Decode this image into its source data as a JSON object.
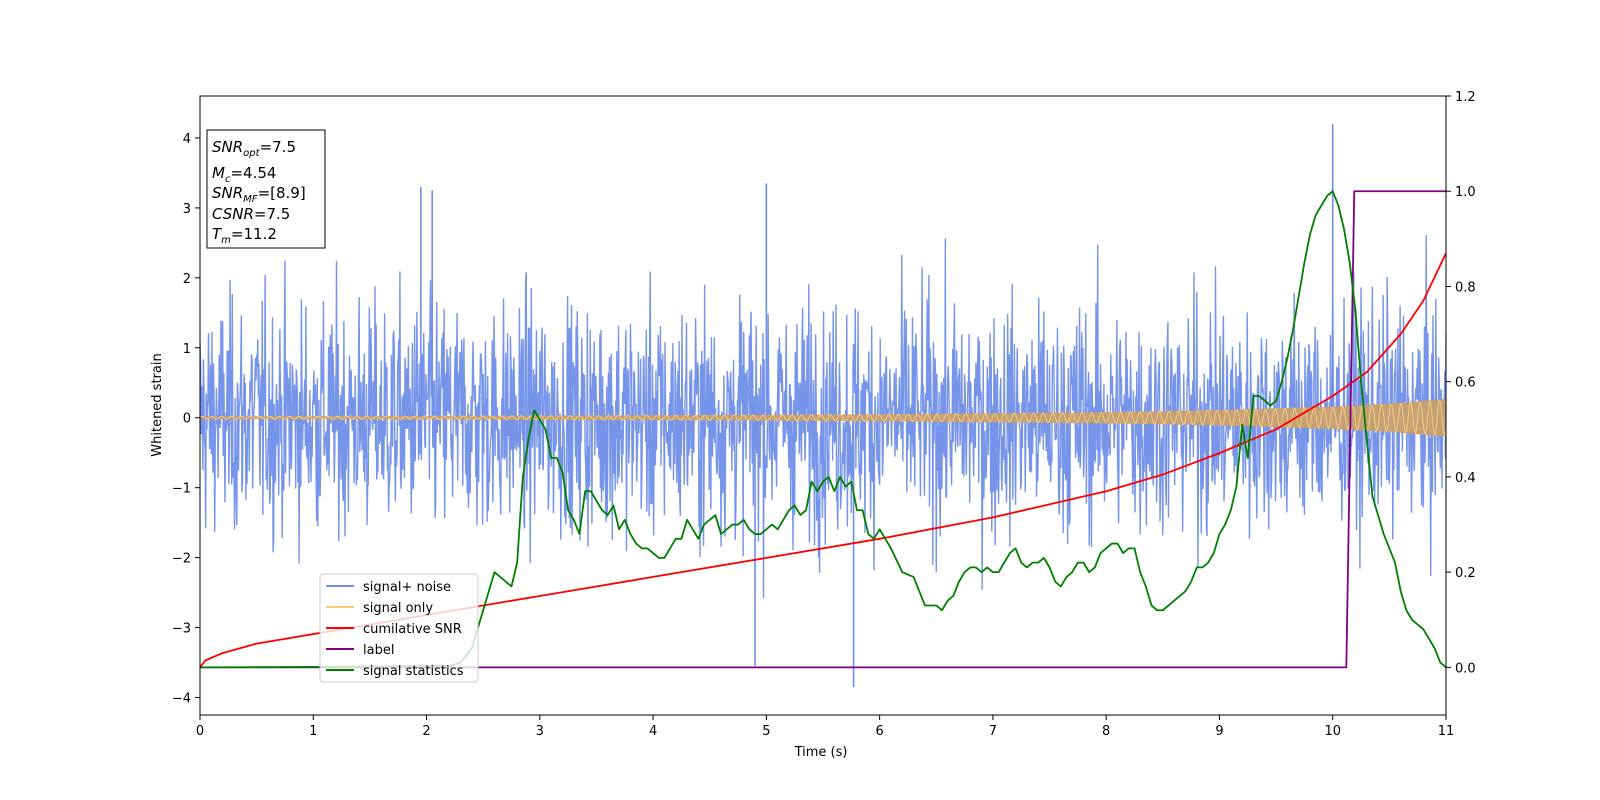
{
  "chart_data": {
    "type": "line",
    "title": "",
    "xlabel": "Time (s)",
    "ylabel": "Whitened strain",
    "y2label": "",
    "xlim": [
      0,
      11
    ],
    "ylim": [
      -4.25,
      4.6
    ],
    "y2lim": [
      -0.1,
      1.2
    ],
    "x_ticks": [
      0,
      1,
      2,
      3,
      4,
      5,
      6,
      7,
      8,
      9,
      10,
      11
    ],
    "y_ticks": [
      -4,
      -3,
      -2,
      -1,
      0,
      1,
      2,
      3,
      4
    ],
    "y_tick_labels": [
      "−4",
      "−3",
      "−2",
      "−1",
      "0",
      "1",
      "2",
      "3",
      "4"
    ],
    "y2_ticks": [
      0.0,
      0.2,
      0.4,
      0.6,
      0.8,
      1.0,
      1.2
    ],
    "y2_tick_labels": [
      "0.0",
      "0.2",
      "0.4",
      "0.6",
      "0.8",
      "1.0",
      "1.2"
    ],
    "grid": false,
    "legend_position": "lower-left",
    "annotation": {
      "snr_opt": {
        "sym": "SNR",
        "sub": "opt",
        "val": "=7.5"
      },
      "mc": {
        "sym": "M",
        "sub": "c",
        "val": "=4.54"
      },
      "snr_mf": {
        "sym": "SNR",
        "sub": "MF",
        "val": "=[8.9]"
      },
      "csnr": {
        "sym": "CSNR",
        "sub": "",
        "val": "=7.5"
      },
      "tm": {
        "sym": "T",
        "sub": "m",
        "val": "=11.2"
      }
    },
    "series": [
      {
        "name": "signal+ noise",
        "color": "#6f8ee8",
        "axis": "left",
        "description_values": "noise band roughly -2.5 to 2.5 with spikes to 4.2",
        "peak_spikes": [
          [
            4.9,
            -3.55
          ],
          [
            5.0,
            3.35
          ],
          [
            5.77,
            -3.85
          ],
          [
            10.0,
            4.2
          ],
          [
            1.95,
            3.3
          ],
          [
            2.05,
            3.25
          ]
        ]
      },
      {
        "name": "signal only",
        "color": "#f5c87a",
        "axis": "left",
        "envelope": {
          "x": [
            0,
            2,
            4,
            6,
            8,
            9,
            10,
            10.5,
            11
          ],
          "amp": [
            0.02,
            0.025,
            0.035,
            0.05,
            0.08,
            0.11,
            0.16,
            0.2,
            0.27
          ]
        }
      },
      {
        "name": "cumilative SNR",
        "color": "#ff0000",
        "axis": "right",
        "x": [
          0,
          0.05,
          0.2,
          0.5,
          1,
          2,
          3,
          4,
          5,
          6,
          7,
          8,
          8.5,
          9,
          9.5,
          10,
          10.3,
          10.6,
          10.8,
          11
        ],
        "y": [
          0.0,
          0.015,
          0.03,
          0.05,
          0.07,
          0.11,
          0.15,
          0.19,
          0.23,
          0.27,
          0.315,
          0.37,
          0.405,
          0.45,
          0.5,
          0.57,
          0.62,
          0.7,
          0.77,
          0.87
        ]
      },
      {
        "name": "label",
        "color": "#800080",
        "axis": "right",
        "x": [
          0,
          10.12,
          10.19,
          11
        ],
        "y": [
          0,
          0,
          1,
          1
        ]
      },
      {
        "name": "signal statistics",
        "color": "#007f00",
        "axis": "right",
        "x": [
          0,
          1,
          2.2,
          2.3,
          2.4,
          2.5,
          2.6,
          2.7,
          2.75,
          2.8,
          2.85,
          2.9,
          2.95,
          3.0,
          3.05,
          3.1,
          3.15,
          3.2,
          3.25,
          3.3,
          3.35,
          3.4,
          3.45,
          3.5,
          3.55,
          3.6,
          3.65,
          3.7,
          3.75,
          3.8,
          3.85,
          3.9,
          3.95,
          4.0,
          4.05,
          4.1,
          4.15,
          4.2,
          4.25,
          4.3,
          4.35,
          4.4,
          4.45,
          4.5,
          4.55,
          4.6,
          4.65,
          4.7,
          4.75,
          4.8,
          4.85,
          4.9,
          4.95,
          5.0,
          5.05,
          5.1,
          5.15,
          5.2,
          5.25,
          5.3,
          5.35,
          5.4,
          5.45,
          5.5,
          5.55,
          5.6,
          5.65,
          5.7,
          5.75,
          5.8,
          5.85,
          5.9,
          5.95,
          6.0,
          6.1,
          6.2,
          6.3,
          6.4,
          6.5,
          6.55,
          6.6,
          6.65,
          6.7,
          6.75,
          6.8,
          6.85,
          6.9,
          6.95,
          7.0,
          7.05,
          7.1,
          7.15,
          7.2,
          7.25,
          7.3,
          7.35,
          7.4,
          7.45,
          7.5,
          7.55,
          7.6,
          7.65,
          7.7,
          7.75,
          7.8,
          7.85,
          7.9,
          7.95,
          8.0,
          8.05,
          8.1,
          8.15,
          8.2,
          8.25,
          8.3,
          8.35,
          8.4,
          8.45,
          8.5,
          8.55,
          8.6,
          8.65,
          8.7,
          8.75,
          8.8,
          8.85,
          8.9,
          8.95,
          9.0,
          9.05,
          9.1,
          9.15,
          9.2,
          9.25,
          9.3,
          9.35,
          9.4,
          9.45,
          9.5,
          9.55,
          9.6,
          9.65,
          9.7,
          9.75,
          9.8,
          9.85,
          9.9,
          9.95,
          10.0,
          10.05,
          10.1,
          10.15,
          10.2,
          10.25,
          10.3,
          10.35,
          10.4,
          10.45,
          10.5,
          10.55,
          10.6,
          10.65,
          10.7,
          10.75,
          10.8,
          10.85,
          10.9,
          10.95,
          11.0
        ],
        "y": [
          0.0,
          0.001,
          0.003,
          0.01,
          0.04,
          0.12,
          0.2,
          0.18,
          0.17,
          0.22,
          0.4,
          0.48,
          0.54,
          0.52,
          0.5,
          0.44,
          0.44,
          0.41,
          0.33,
          0.31,
          0.28,
          0.37,
          0.37,
          0.35,
          0.33,
          0.32,
          0.34,
          0.29,
          0.31,
          0.28,
          0.26,
          0.25,
          0.25,
          0.24,
          0.23,
          0.23,
          0.25,
          0.27,
          0.27,
          0.31,
          0.29,
          0.27,
          0.3,
          0.31,
          0.32,
          0.28,
          0.29,
          0.3,
          0.3,
          0.31,
          0.29,
          0.28,
          0.28,
          0.29,
          0.3,
          0.29,
          0.31,
          0.33,
          0.34,
          0.32,
          0.33,
          0.39,
          0.37,
          0.39,
          0.4,
          0.37,
          0.4,
          0.38,
          0.39,
          0.33,
          0.33,
          0.28,
          0.27,
          0.29,
          0.25,
          0.2,
          0.19,
          0.13,
          0.13,
          0.12,
          0.14,
          0.15,
          0.18,
          0.2,
          0.21,
          0.21,
          0.2,
          0.21,
          0.2,
          0.2,
          0.22,
          0.24,
          0.25,
          0.22,
          0.21,
          0.22,
          0.22,
          0.23,
          0.21,
          0.18,
          0.17,
          0.19,
          0.2,
          0.22,
          0.22,
          0.2,
          0.21,
          0.24,
          0.25,
          0.26,
          0.26,
          0.24,
          0.25,
          0.25,
          0.2,
          0.17,
          0.13,
          0.12,
          0.12,
          0.13,
          0.14,
          0.15,
          0.16,
          0.18,
          0.21,
          0.21,
          0.22,
          0.24,
          0.28,
          0.3,
          0.33,
          0.38,
          0.51,
          0.44,
          0.57,
          0.57,
          0.56,
          0.55,
          0.56,
          0.6,
          0.65,
          0.71,
          0.78,
          0.85,
          0.91,
          0.95,
          0.97,
          0.99,
          1.0,
          0.97,
          0.92,
          0.85,
          0.75,
          0.6,
          0.48,
          0.36,
          0.32,
          0.28,
          0.25,
          0.22,
          0.16,
          0.12,
          0.1,
          0.09,
          0.08,
          0.06,
          0.04,
          0.01,
          0.0
        ]
      }
    ]
  }
}
